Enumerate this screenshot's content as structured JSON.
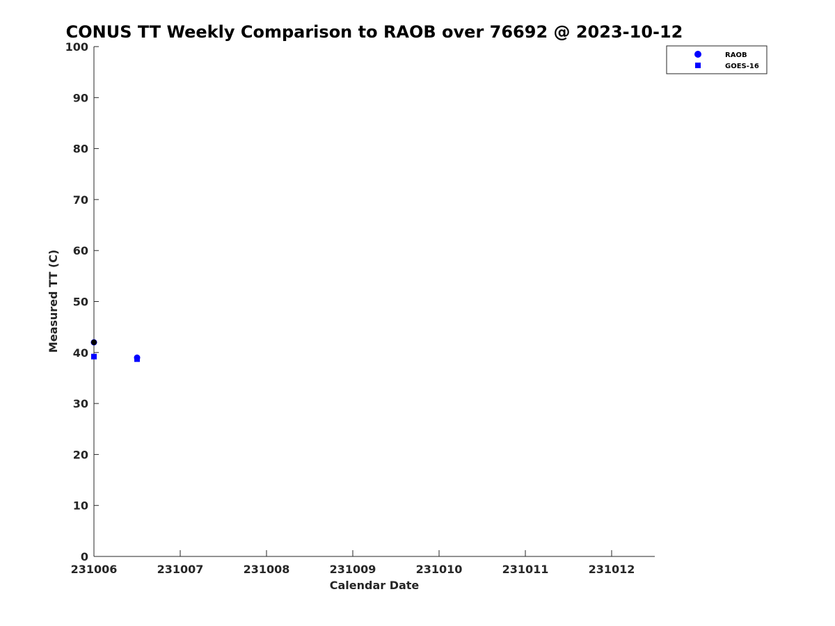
{
  "chart_data": {
    "type": "scatter",
    "title": "CONUS TT Weekly Comparison to RAOB over 76692 @ 2023-10-12",
    "xlabel": "Calendar Date",
    "ylabel": "Measured TT (C)",
    "xlim": [
      0,
      6.5
    ],
    "ylim": [
      0,
      100
    ],
    "x_tick_labels": [
      "231006",
      "231007",
      "231008",
      "231009",
      "231010",
      "231011",
      "231012"
    ],
    "x_tick_values": [
      0,
      1,
      2,
      3,
      4,
      5,
      6
    ],
    "y_tick_values": [
      0,
      10,
      20,
      30,
      40,
      50,
      60,
      70,
      80,
      90,
      100
    ],
    "grid": false,
    "legend_position": "top-right",
    "series": [
      {
        "name": "RAOB",
        "marker": "circle",
        "color": "#0000ff",
        "x": [
          0,
          0.5
        ],
        "y": [
          42,
          39
        ]
      },
      {
        "name": "GOES-16",
        "marker": "square",
        "color": "#0000ff",
        "x": [
          0,
          0.5
        ],
        "y": [
          39.2,
          38.7
        ]
      }
    ],
    "annotations": [
      {
        "marker": "circle",
        "color": "#000000",
        "x": 0,
        "y": 42
      }
    ]
  }
}
